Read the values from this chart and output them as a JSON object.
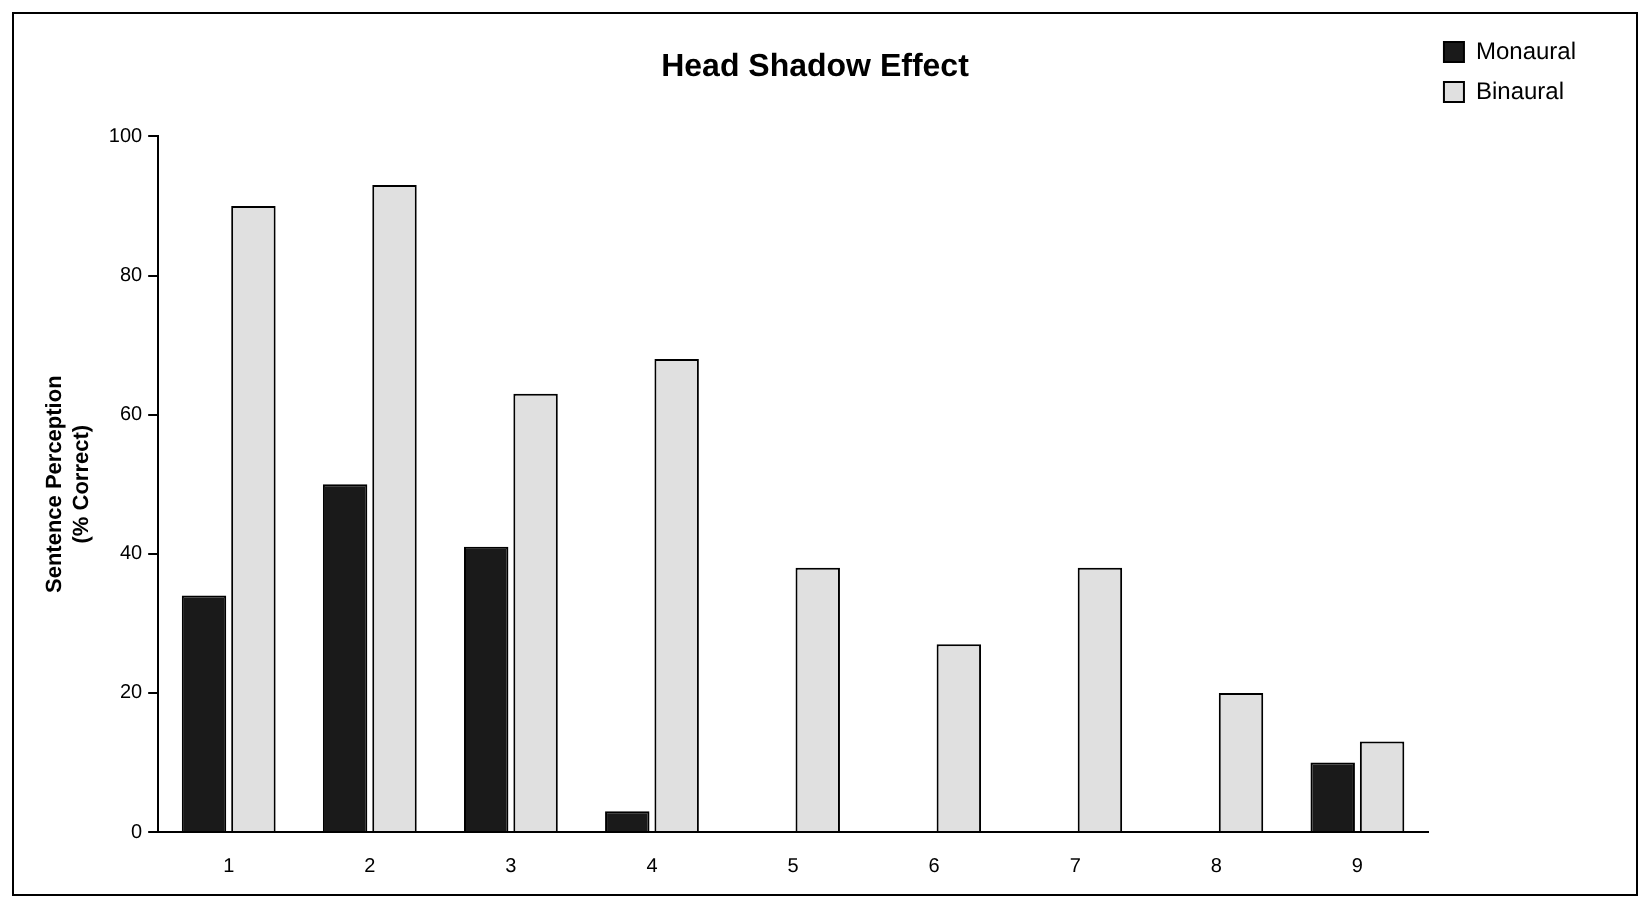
{
  "chart_data": {
    "type": "bar",
    "title": "Head Shadow Effect",
    "ylabel": "Sentence Perception\n(% Correct)",
    "categories": [
      "1",
      "2",
      "3",
      "4",
      "5",
      "6",
      "7",
      "8",
      "9"
    ],
    "series": [
      {
        "name": "Monaural",
        "color": "#1a1a1a",
        "values": [
          34,
          50,
          41,
          3,
          0,
          0,
          0,
          0,
          10
        ]
      },
      {
        "name": "Binaural",
        "color": "#e0e0e0",
        "values": [
          90,
          93,
          63,
          68,
          38,
          27,
          38,
          20,
          13
        ]
      }
    ],
    "ylim": [
      0,
      100
    ],
    "yticks": [
      0,
      20,
      40,
      60,
      80,
      100
    ],
    "grid": false,
    "legend": "top right"
  }
}
